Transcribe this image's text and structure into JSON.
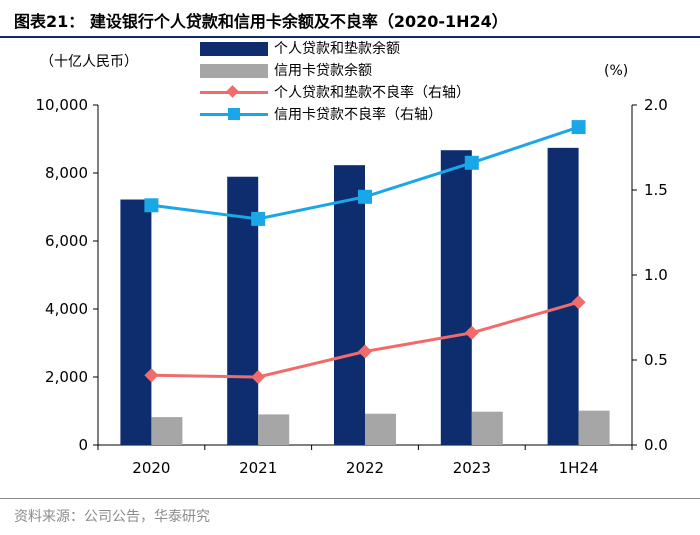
{
  "figure": {
    "title": "图表21：  建设银行个人贷款和信用卡余额及不良率（2020-1H24）",
    "unit_left": "（十亿人民币）",
    "unit_right": "(%)",
    "source": "资料来源：公司公告，华泰研究"
  },
  "chart_data": {
    "type": "bar",
    "categories": [
      "2020",
      "2021",
      "2022",
      "2023",
      "1H24"
    ],
    "series": [
      {
        "name": "个人贷款和垫款余额",
        "type": "bar",
        "axis": "left",
        "color": "#0e2d6e",
        "values": [
          7220,
          7890,
          8230,
          8670,
          8740
        ]
      },
      {
        "name": "信用卡贷款余额",
        "type": "bar",
        "axis": "left",
        "color": "#a6a6a6",
        "values": [
          820,
          900,
          920,
          980,
          1010
        ]
      },
      {
        "name": "个人贷款和垫款不良率（右轴）",
        "type": "line",
        "axis": "right",
        "marker": "diamond",
        "color": "#f26b6b",
        "values": [
          0.41,
          0.4,
          0.55,
          0.66,
          0.84
        ]
      },
      {
        "name": "信用卡贷款不良率（右轴）",
        "type": "line",
        "axis": "right",
        "marker": "square",
        "color": "#1aa7e8",
        "values": [
          1.41,
          1.33,
          1.46,
          1.66,
          1.87
        ]
      }
    ],
    "ylim_left": [
      0,
      10000
    ],
    "yticks_left": [
      "0",
      "2,000",
      "4,000",
      "6,000",
      "8,000",
      "10,000"
    ],
    "ylim_right": [
      0,
      2.0
    ],
    "yticks_right": [
      "0.0",
      "0.5",
      "1.0",
      "1.5",
      "2.0"
    ],
    "legend_position": "top",
    "grid": false
  }
}
